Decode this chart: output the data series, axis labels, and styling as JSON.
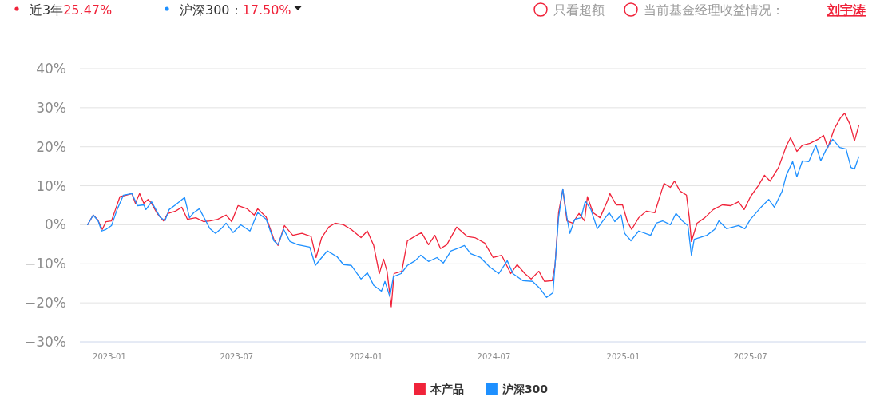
{
  "chart_data": {
    "type": "line",
    "annotations": [
      "近3年",
      "25.47%",
      "沪深300：",
      "17.50%",
      "只看超额",
      "当前基金经理收益情况：",
      "刘宇涛"
    ],
    "xlim": [
      "2022-11-20",
      "2025-12-13"
    ],
    "xticks": [
      "2023-01",
      "2023-07",
      "2024-01",
      "2024-07",
      "2025-01",
      "2025-07"
    ],
    "ylim": [
      -30,
      40
    ],
    "yticks": [
      {
        "value": -30,
        "label": "−30%"
      },
      {
        "value": -20,
        "label": "−20%"
      },
      {
        "value": -10,
        "label": "−10%"
      },
      {
        "value": 0,
        "label": "0%"
      },
      {
        "value": 10,
        "label": "10%"
      },
      {
        "value": 20,
        "label": "20%"
      },
      {
        "value": 30,
        "label": "30%"
      },
      {
        "value": 40,
        "label": "40%"
      }
    ],
    "grid": "y",
    "legend": "bottom",
    "series": [
      {
        "name": "本产品",
        "color": "#f0233a",
        "x": [
          "2022-12-01",
          "2022-12-09",
          "2022-12-15",
          "2022-12-22",
          "2022-12-27",
          "2023-01-04",
          "2023-01-10",
          "2023-01-16",
          "2023-01-25",
          "2023-02-02",
          "2023-02-07",
          "2023-02-13",
          "2023-02-19",
          "2023-02-25",
          "2023-03-02",
          "2023-03-10",
          "2023-03-19",
          "2023-03-25",
          "2023-04-05",
          "2023-04-14",
          "2023-04-22",
          "2023-05-04",
          "2023-05-15",
          "2023-05-24",
          "2023-06-04",
          "2023-06-16",
          "2023-06-24",
          "2023-07-03",
          "2023-07-16",
          "2023-07-26",
          "2023-07-31",
          "2023-08-12",
          "2023-08-23",
          "2023-08-29",
          "2023-09-07",
          "2023-09-19",
          "2023-10-02",
          "2023-10-15",
          "2023-10-22",
          "2023-10-30",
          "2023-11-09",
          "2023-11-18",
          "2023-11-30",
          "2023-12-11",
          "2023-12-25",
          "2024-01-03",
          "2024-01-12",
          "2024-01-20",
          "2024-01-26",
          "2024-01-31",
          "2024-02-06",
          "2024-02-10",
          "2024-02-21",
          "2024-02-29",
          "2024-03-13",
          "2024-03-20",
          "2024-03-30",
          "2024-04-08",
          "2024-04-16",
          "2024-04-25",
          "2024-05-09",
          "2024-05-24",
          "2024-06-04",
          "2024-06-18",
          "2024-06-30",
          "2024-07-12",
          "2024-07-25",
          "2024-08-03",
          "2024-08-14",
          "2024-08-23",
          "2024-09-03",
          "2024-09-11",
          "2024-09-22",
          "2024-09-26",
          "2024-10-01",
          "2024-10-07",
          "2024-10-13",
          "2024-10-21",
          "2024-10-30",
          "2024-11-07",
          "2024-11-11",
          "2024-11-19",
          "2024-11-29",
          "2024-12-09",
          "2024-12-13",
          "2024-12-22",
          "2024-12-31",
          "2025-01-07",
          "2025-01-13",
          "2025-01-23",
          "2025-02-03",
          "2025-02-15",
          "2025-02-20",
          "2025-02-28",
          "2025-03-09",
          "2025-03-15",
          "2025-03-23",
          "2025-04-01",
          "2025-04-05",
          "2025-04-08",
          "2025-04-16",
          "2025-04-27",
          "2025-05-09",
          "2025-05-22",
          "2025-06-03",
          "2025-06-14",
          "2025-06-22",
          "2025-07-01",
          "2025-07-12",
          "2025-07-21",
          "2025-07-29",
          "2025-08-10",
          "2025-08-21",
          "2025-08-27",
          "2025-09-05",
          "2025-09-13",
          "2025-09-24",
          "2025-10-05",
          "2025-10-13",
          "2025-10-19",
          "2025-10-28",
          "2025-11-06",
          "2025-11-12",
          "2025-11-20",
          "2025-11-26",
          "2025-12-02"
        ],
        "values": [
          0,
          2.5,
          1.4,
          -1.2,
          0.8,
          1,
          4.1,
          7.2,
          7.6,
          8,
          5.5,
          8,
          5.5,
          6.5,
          5.5,
          2.9,
          1,
          2.9,
          3.5,
          4.5,
          1.4,
          1.8,
          0.8,
          1,
          1.4,
          2.5,
          0.8,
          4.9,
          4.1,
          2.5,
          4.1,
          2,
          -3.7,
          -5.3,
          -0.2,
          -2.7,
          -2.2,
          -3,
          -8.4,
          -3.3,
          -0.6,
          0.4,
          0,
          -1.2,
          -3.3,
          -1.6,
          -5.3,
          -12.5,
          -8.8,
          -11.9,
          -21,
          -12.5,
          -11.9,
          -4.1,
          -2.7,
          -2,
          -5.1,
          -2.7,
          -6.1,
          -5.1,
          -0.6,
          -3,
          -3.3,
          -4.7,
          -8.4,
          -7.8,
          -12.5,
          -10.2,
          -12.5,
          -13.9,
          -11.9,
          -14.5,
          -14.3,
          -10.4,
          3.1,
          9,
          1,
          0.4,
          2.9,
          1,
          7.2,
          3.1,
          1.8,
          5.9,
          8,
          5.1,
          5.1,
          0.8,
          -1.2,
          1.8,
          3.5,
          3.1,
          6.1,
          10.6,
          9.6,
          11.2,
          8.6,
          7.6,
          1.8,
          -4.3,
          0.4,
          1.8,
          3.9,
          5.1,
          4.9,
          5.9,
          3.9,
          7.2,
          10,
          12.7,
          11.2,
          14.7,
          20.2,
          22.3,
          18.8,
          20.4,
          20.9,
          21.9,
          22.9,
          19.8,
          24.5,
          27.4,
          28.6,
          25.6,
          21.5,
          25.4
        ]
      },
      {
        "name": "沪深300",
        "color": "#1e90ff",
        "x": [
          "2022-12-01",
          "2022-12-09",
          "2022-12-16",
          "2022-12-21",
          "2022-12-27",
          "2023-01-04",
          "2023-01-12",
          "2023-01-21",
          "2023-02-02",
          "2023-02-10",
          "2023-02-19",
          "2023-02-22",
          "2023-03-02",
          "2023-03-14",
          "2023-03-21",
          "2023-03-27",
          "2023-04-05",
          "2023-04-18",
          "2023-04-25",
          "2023-05-01",
          "2023-05-09",
          "2023-05-17",
          "2023-05-24",
          "2023-06-01",
          "2023-06-09",
          "2023-06-16",
          "2023-06-26",
          "2023-07-07",
          "2023-07-20",
          "2023-07-31",
          "2023-08-12",
          "2023-08-23",
          "2023-08-29",
          "2023-09-06",
          "2023-09-15",
          "2023-09-26",
          "2023-10-13",
          "2023-10-21",
          "2023-10-30",
          "2023-11-07",
          "2023-11-21",
          "2023-11-30",
          "2023-12-11",
          "2023-12-25",
          "2024-01-03",
          "2024-01-12",
          "2024-01-23",
          "2024-01-28",
          "2024-02-04",
          "2024-02-09",
          "2024-02-20",
          "2024-02-29",
          "2024-03-11",
          "2024-03-19",
          "2024-03-30",
          "2024-04-11",
          "2024-04-20",
          "2024-05-01",
          "2024-05-10",
          "2024-05-20",
          "2024-05-29",
          "2024-06-12",
          "2024-06-25",
          "2024-07-08",
          "2024-07-20",
          "2024-07-28",
          "2024-08-11",
          "2024-08-25",
          "2024-09-05",
          "2024-09-14",
          "2024-09-23",
          "2024-10-01",
          "2024-10-07",
          "2024-10-13",
          "2024-10-17",
          "2024-10-24",
          "2024-11-02",
          "2024-11-08",
          "2024-11-16",
          "2024-11-25",
          "2024-12-03",
          "2024-12-12",
          "2024-12-20",
          "2024-12-29",
          "2025-01-03",
          "2025-01-12",
          "2025-01-23",
          "2025-02-09",
          "2025-02-17",
          "2025-02-26",
          "2025-03-09",
          "2025-03-17",
          "2025-03-26",
          "2025-04-03",
          "2025-04-08",
          "2025-04-12",
          "2025-04-30",
          "2025-05-11",
          "2025-05-17",
          "2025-05-28",
          "2025-06-14",
          "2025-06-23",
          "2025-07-01",
          "2025-07-16",
          "2025-07-27",
          "2025-08-04",
          "2025-08-15",
          "2025-08-21",
          "2025-08-30",
          "2025-09-05",
          "2025-09-13",
          "2025-09-22",
          "2025-10-02",
          "2025-10-09",
          "2025-10-17",
          "2025-10-26",
          "2025-11-05",
          "2025-11-14",
          "2025-11-21",
          "2025-11-26",
          "2025-12-02"
        ],
        "values": [
          0,
          2.5,
          1,
          -1.6,
          -1.2,
          -0.2,
          3.9,
          7.6,
          8,
          4.9,
          5.1,
          3.9,
          5.9,
          2,
          1,
          3.9,
          5.1,
          7,
          1.8,
          3.1,
          4.1,
          1.4,
          -1,
          -2.2,
          -1,
          0.4,
          -2,
          0,
          -1.6,
          3.1,
          1.4,
          -4.1,
          -5.1,
          -1.2,
          -4.3,
          -5.1,
          -5.7,
          -10.4,
          -8.4,
          -6.7,
          -8.2,
          -10.2,
          -10.4,
          -13.9,
          -12.3,
          -15.5,
          -17,
          -14.5,
          -18.4,
          -13.3,
          -12.5,
          -10.4,
          -9.2,
          -7.8,
          -9.4,
          -8.4,
          -9.8,
          -6.7,
          -6.1,
          -5.3,
          -7.4,
          -8.4,
          -10.8,
          -12.5,
          -9.2,
          -12.5,
          -14.3,
          -14.5,
          -16.4,
          -18.6,
          -17.4,
          1.8,
          9.2,
          1.8,
          -2.2,
          1.4,
          1.8,
          6.1,
          3.9,
          -1,
          1,
          3.1,
          0.8,
          2.5,
          -2.2,
          -4.1,
          -1.6,
          -2.7,
          0.4,
          1,
          0,
          2.9,
          1,
          -0.2,
          -7.8,
          -3.7,
          -2.7,
          -1.2,
          1,
          -1,
          -0.2,
          -1,
          1.4,
          4.5,
          6.5,
          4.5,
          8.6,
          12.7,
          16.2,
          12.3,
          16.4,
          16.2,
          20.4,
          16.4,
          19.4,
          21.9,
          19.8,
          19.4,
          14.7,
          14.3,
          17.4
        ]
      }
    ]
  }
}
